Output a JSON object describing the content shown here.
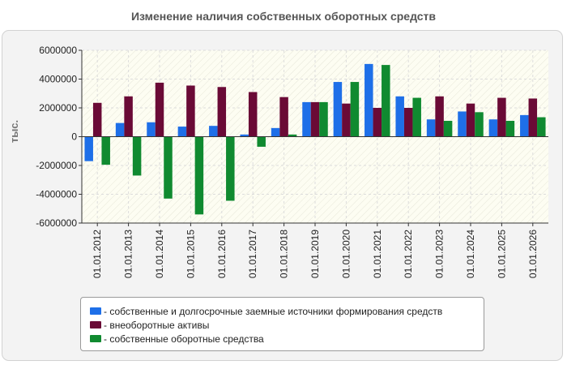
{
  "colors": {
    "plot_bg": "#fdfdf2",
    "grid": "#dcdcdc",
    "axis": "#333333"
  },
  "chart_data": {
    "type": "bar",
    "title": "Изменение наличия собственных оборотных средств",
    "ylabel": "тыс.",
    "xlabel": "",
    "ylim": [
      -6000000,
      6000000
    ],
    "yticks": [
      6000000,
      4000000,
      2000000,
      0,
      -2000000,
      -4000000,
      -6000000
    ],
    "grid": true,
    "legend_position": "bottom",
    "categories": [
      "01.01.2012",
      "01.01.2013",
      "01.01.2014",
      "01.01.2015",
      "01.01.2016",
      "01.01.2017",
      "01.01.2018",
      "01.01.2019",
      "01.01.2020",
      "01.01.2021",
      "01.01.2022",
      "01.01.2023",
      "01.01.2024",
      "01.01.2025",
      "01.01.2026"
    ],
    "series": [
      {
        "name": "- собственные и долгосрочные заемные источники формирования средств",
        "color": "#1e6fe8",
        "values": [
          -1700000,
          950000,
          1000000,
          700000,
          750000,
          150000,
          600000,
          2400000,
          3800000,
          5050000,
          2800000,
          1200000,
          1750000,
          1200000,
          1500000
        ]
      },
      {
        "name": "- внеоборотные активы",
        "color": "#6a0a36",
        "values": [
          2350000,
          2800000,
          3750000,
          3550000,
          3450000,
          3100000,
          2750000,
          2400000,
          2300000,
          2000000,
          2000000,
          2800000,
          2300000,
          2700000,
          2650000
        ]
      },
      {
        "name": "- собственные оборотные средства",
        "color": "#108a30",
        "values": [
          -1950000,
          -2700000,
          -4300000,
          -5400000,
          -4450000,
          -700000,
          150000,
          2400000,
          3800000,
          4980000,
          2700000,
          1100000,
          1700000,
          1100000,
          1350000
        ]
      }
    ]
  }
}
